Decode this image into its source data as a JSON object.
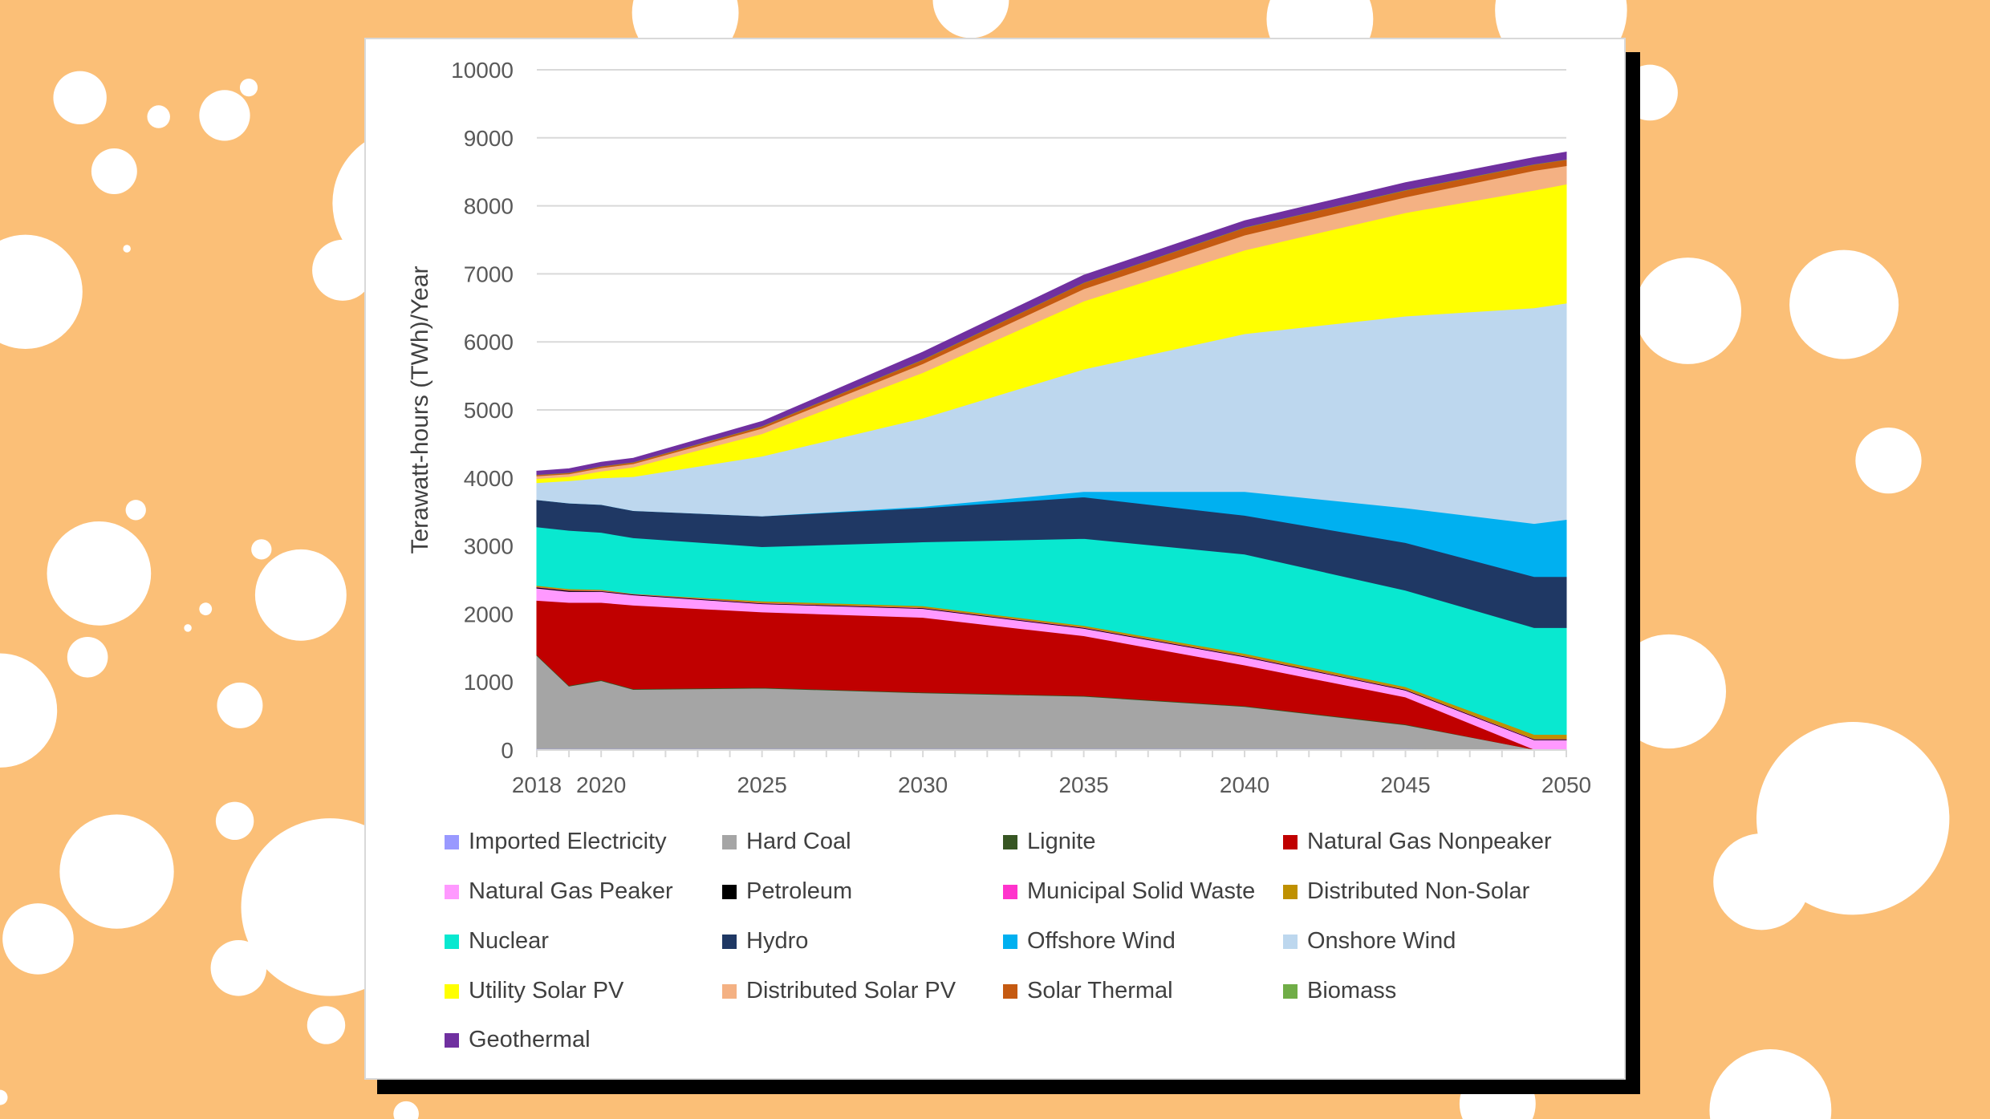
{
  "chart_data": {
    "type": "area",
    "stacked": true,
    "title": "",
    "xlabel": "",
    "ylabel": "Terawatt-hours (TWh)/Year",
    "ylim": [
      0,
      10000
    ],
    "yticks": [
      "0",
      "1000",
      "2000",
      "3000",
      "4000",
      "5000",
      "6000",
      "7000",
      "8000",
      "9000",
      "10000"
    ],
    "xlim": [
      2018,
      2050
    ],
    "xticks": [
      "2018",
      "2020",
      "2025",
      "2030",
      "2035",
      "2040",
      "2045",
      "2050"
    ],
    "grid": true,
    "legend_position": "bottom",
    "x": [
      2018,
      2019,
      2020,
      2021,
      2025,
      2030,
      2035,
      2040,
      2045,
      2049,
      2050
    ],
    "series": [
      {
        "name": "Imported Electricity",
        "color": "#9999FF",
        "values": [
          20,
          20,
          20,
          20,
          20,
          20,
          20,
          20,
          20,
          10,
          10
        ]
      },
      {
        "name": "Hard Coal",
        "color": "#A5A5A5",
        "values": [
          1370,
          920,
          1000,
          870,
          890,
          820,
          770,
          620,
          350,
          0,
          0
        ]
      },
      {
        "name": "Lignite",
        "color": "#375623",
        "values": [
          10,
          10,
          10,
          10,
          10,
          10,
          10,
          10,
          10,
          0,
          0
        ]
      },
      {
        "name": "Natural Gas Nonpeaker",
        "color": "#C00000",
        "values": [
          800,
          1220,
          1140,
          1230,
          1110,
          1100,
          880,
          600,
          400,
          0,
          0
        ]
      },
      {
        "name": "Natural Gas Peaker",
        "color": "#FF99FF",
        "values": [
          180,
          160,
          160,
          150,
          120,
          130,
          110,
          120,
          100,
          140,
          140
        ]
      },
      {
        "name": "Petroleum",
        "color": "#000000",
        "values": [
          15,
          15,
          10,
          10,
          10,
          10,
          10,
          10,
          10,
          10,
          10
        ]
      },
      {
        "name": "Municipal Solid Waste",
        "color": "#FF33CC",
        "values": [
          5,
          5,
          5,
          5,
          5,
          5,
          5,
          5,
          5,
          5,
          5
        ]
      },
      {
        "name": "Distributed Non-Solar",
        "color": "#BF9000",
        "values": [
          20,
          20,
          15,
          5,
          25,
          25,
          25,
          35,
          35,
          65,
          65
        ]
      },
      {
        "name": "Nuclear",
        "color": "#09E8D0",
        "values": [
          860,
          860,
          840,
          820,
          800,
          940,
          1280,
          1460,
          1420,
          1570,
          1570
        ]
      },
      {
        "name": "Hydro",
        "color": "#1F3864",
        "values": [
          400,
          400,
          410,
          400,
          450,
          500,
          610,
          570,
          700,
          750,
          750
        ]
      },
      {
        "name": "Offshore Wind",
        "color": "#00B0F0",
        "values": [
          0,
          0,
          0,
          0,
          0,
          20,
          80,
          350,
          510,
          780,
          840
        ]
      },
      {
        "name": "Onshore Wind",
        "color": "#BDD7EE",
        "values": [
          250,
          330,
          390,
          500,
          880,
          1300,
          1800,
          2320,
          2820,
          3170,
          3180
        ]
      },
      {
        "name": "Utility Solar PV",
        "color": "#FFFF00",
        "values": [
          60,
          60,
          100,
          140,
          330,
          670,
          1000,
          1230,
          1520,
          1730,
          1750
        ]
      },
      {
        "name": "Distributed Solar PV",
        "color": "#F4B183",
        "values": [
          40,
          40,
          50,
          50,
          80,
          130,
          180,
          220,
          230,
          290,
          270
        ]
      },
      {
        "name": "Solar Thermal",
        "color": "#C55A11",
        "values": [
          15,
          15,
          20,
          20,
          30,
          60,
          90,
          110,
          100,
          90,
          90
        ]
      },
      {
        "name": "Biomass",
        "color": "#70AD47",
        "values": [
          5,
          5,
          5,
          5,
          5,
          5,
          5,
          5,
          5,
          5,
          5
        ]
      },
      {
        "name": "Geothermal",
        "color": "#7030A0",
        "values": [
          50,
          55,
          55,
          55,
          65,
          105,
          105,
          95,
          105,
          95,
          105
        ]
      }
    ]
  }
}
